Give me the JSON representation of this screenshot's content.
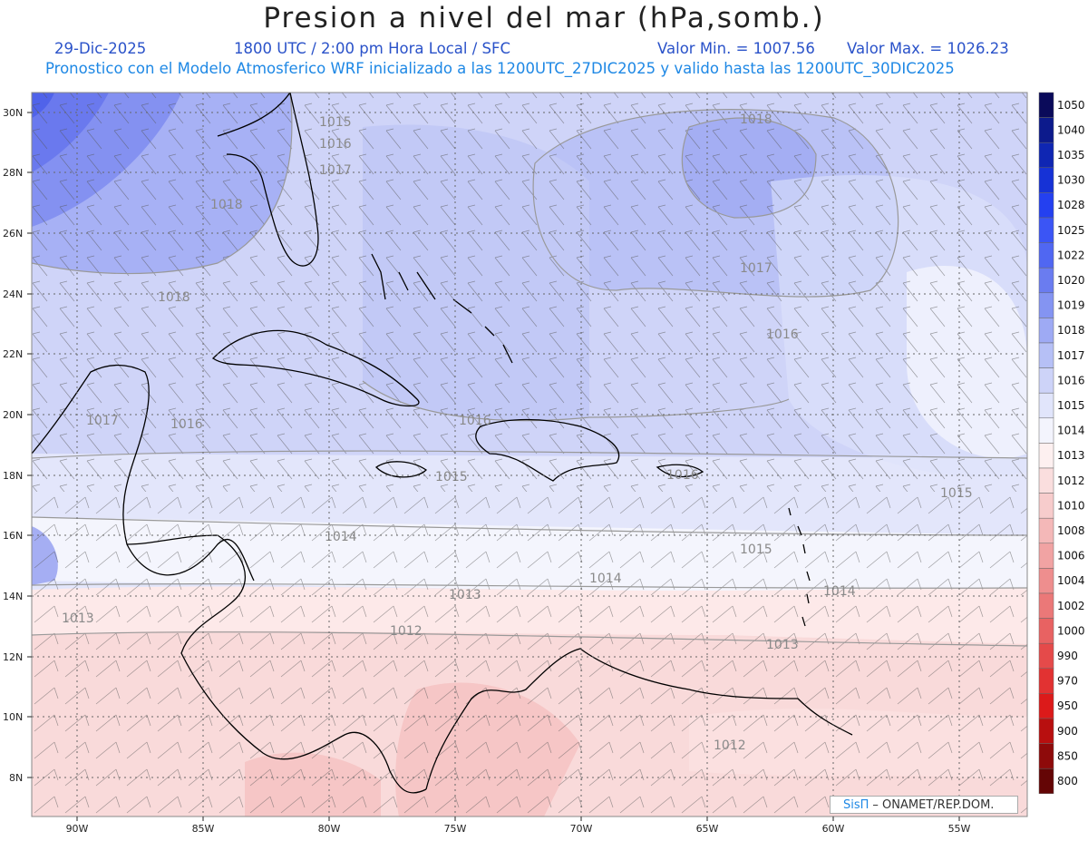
{
  "header": {
    "title": "Presion a nivel del mar (hPa,somb.)",
    "date": "29-Dic-2025",
    "time": "1800 UTC / 2:00 pm Hora Local / SFC",
    "min": "Valor Min. = 1007.56",
    "max": "Valor Max. = 1026.23",
    "model_line": "Pronostico con el Modelo Atmosferico WRF inicializado a las 1200UTC_27DIC2025 y valido hasta las  1200UTC_30DIC2025"
  },
  "axes": {
    "lat_labels": [
      "30N",
      "28N",
      "26N",
      "24N",
      "22N",
      "20N",
      "18N",
      "16N",
      "14N",
      "12N",
      "10N",
      "8N"
    ],
    "lon_labels": [
      "90W",
      "85W",
      "80W",
      "75W",
      "70W",
      "65W",
      "60W",
      "55W"
    ]
  },
  "colorbar": {
    "labels": [
      "1050",
      "1040",
      "1035",
      "1030",
      "1028",
      "1025",
      "1022",
      "1020",
      "1019",
      "1018",
      "1017",
      "1016",
      "1015",
      "1014",
      "1013",
      "1012",
      "1010",
      "1008",
      "1006",
      "1004",
      "1002",
      "1000",
      "990",
      "970",
      "950",
      "900",
      "850",
      "800"
    ],
    "colors": [
      "#0a0a5a",
      "#0c1a8c",
      "#0f26b3",
      "#1632d6",
      "#2440f0",
      "#3b55f5",
      "#5067f2",
      "#6a7cf0",
      "#8494f2",
      "#9eaaf4",
      "#b6c0f6",
      "#cdd3f8",
      "#e1e5fb",
      "#f3f4fd",
      "#fdf0f0",
      "#fadede",
      "#f7cccc",
      "#f4b8b8",
      "#f1a3a3",
      "#ee8e8e",
      "#eb7878",
      "#e86262",
      "#e54a4a",
      "#e23232",
      "#dc1a1a",
      "#b80f0f",
      "#8e0a0a",
      "#640505"
    ]
  },
  "contour_labels": [
    "1015",
    "1016",
    "1017",
    "1018",
    "1018",
    "1018",
    "1017",
    "1016",
    "1017",
    "1016",
    "1016",
    "1015",
    "1016",
    "1014",
    "1015",
    "1015",
    "1014",
    "1013",
    "1014",
    "1013",
    "1012",
    "1013",
    "1012"
  ],
  "credit": {
    "brand": "SisΠ",
    "text": "– ONAMET/REP.DOM."
  }
}
